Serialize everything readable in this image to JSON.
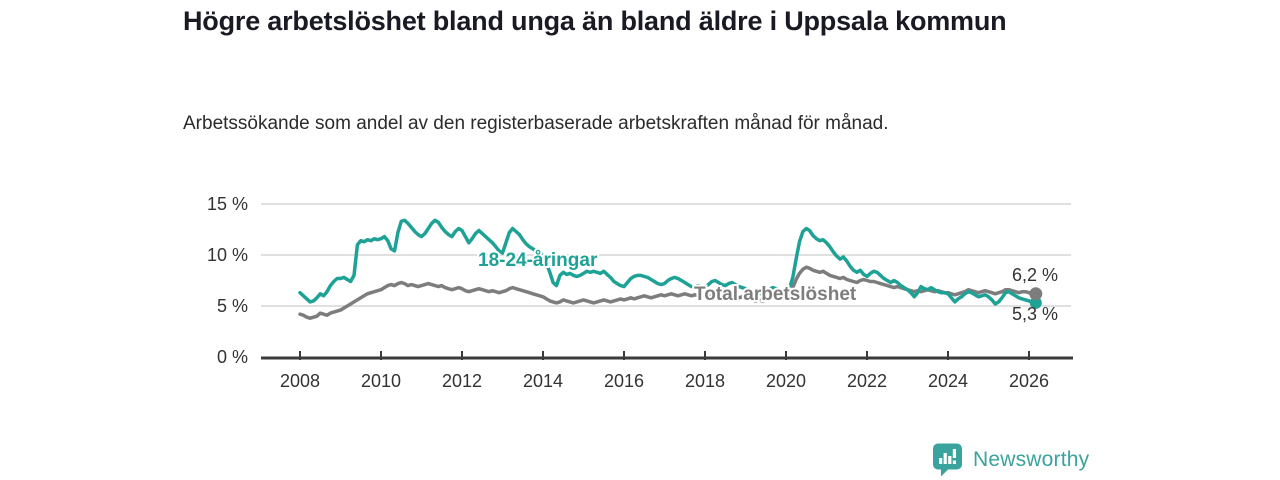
{
  "title": "Högre arbetslöshet bland unga än bland äldre i Uppsala kommun",
  "subtitle": "Arbetssökande som andel av den registerbaserade arbetskraften månad för månad.",
  "branding": {
    "wordmark": "Newsworthy"
  },
  "colors": {
    "youth": "#1fa296",
    "total": "#7d7d7d",
    "grid": "#d6d6d6",
    "axis": "#3b3b3b",
    "logo": "#3aa39d"
  },
  "chart_data": {
    "type": "line",
    "title": "Högre arbetslöshet bland unga än bland äldre i Uppsala kommun",
    "subtitle": "Arbetssökande som andel av den registerbaserade arbetskraften månad för månad.",
    "unit": "percent of registered labour force",
    "x_start": "2008-01",
    "points_per_year": 12,
    "xlim": [
      2008,
      2027.1
    ],
    "ylim": [
      0,
      15
    ],
    "grid": "horizontal",
    "y_tick_labels": [
      "15 %",
      "10 %",
      "5 %",
      "0 %"
    ],
    "x_tick_labels": [
      "2008",
      "2010",
      "2012",
      "2014",
      "2016",
      "2018",
      "2020",
      "2022",
      "2024",
      "2026"
    ],
    "end_labels": {
      "total": "6,2 %",
      "youth": "5,3 %"
    },
    "series": [
      {
        "name": "Total arbetslöshet",
        "color": "#7d7d7d",
        "last_value": 6.2,
        "values": [
          4.2,
          4.1,
          3.9,
          3.8,
          3.9,
          4.0,
          4.3,
          4.2,
          4.1,
          4.3,
          4.4,
          4.5,
          4.6,
          4.8,
          5.0,
          5.2,
          5.4,
          5.6,
          5.8,
          6.0,
          6.2,
          6.3,
          6.4,
          6.5,
          6.6,
          6.8,
          7.0,
          7.1,
          7.0,
          7.2,
          7.3,
          7.2,
          7.0,
          7.1,
          7.0,
          6.9,
          7.0,
          7.1,
          7.2,
          7.1,
          7.0,
          6.9,
          7.0,
          6.8,
          6.7,
          6.6,
          6.7,
          6.8,
          6.7,
          6.5,
          6.4,
          6.5,
          6.6,
          6.7,
          6.6,
          6.5,
          6.4,
          6.5,
          6.4,
          6.3,
          6.4,
          6.5,
          6.7,
          6.8,
          6.7,
          6.6,
          6.5,
          6.4,
          6.3,
          6.2,
          6.1,
          6.0,
          5.9,
          5.7,
          5.5,
          5.4,
          5.3,
          5.4,
          5.6,
          5.5,
          5.4,
          5.3,
          5.4,
          5.5,
          5.6,
          5.5,
          5.4,
          5.3,
          5.4,
          5.5,
          5.6,
          5.5,
          5.4,
          5.5,
          5.6,
          5.7,
          5.6,
          5.7,
          5.8,
          5.7,
          5.8,
          5.9,
          6.0,
          5.9,
          5.8,
          5.9,
          6.0,
          6.1,
          6.0,
          6.1,
          6.2,
          6.1,
          6.0,
          6.1,
          6.2,
          6.1,
          6.0,
          6.1,
          6.0,
          6.1,
          6.0,
          6.1,
          6.0,
          5.9,
          6.0,
          5.9,
          5.8,
          5.9,
          5.8,
          5.7,
          5.8,
          5.9,
          5.8,
          5.7,
          5.6,
          5.5,
          5.6,
          5.5,
          5.6,
          5.7,
          5.8,
          5.7,
          5.8,
          5.9,
          6.0,
          6.1,
          6.8,
          7.6,
          8.2,
          8.6,
          8.8,
          8.7,
          8.5,
          8.4,
          8.3,
          8.4,
          8.2,
          8.0,
          7.9,
          7.8,
          7.7,
          7.8,
          7.6,
          7.5,
          7.4,
          7.3,
          7.5,
          7.6,
          7.5,
          7.4,
          7.4,
          7.3,
          7.2,
          7.1,
          7.0,
          6.9,
          6.8,
          6.9,
          6.8,
          6.7,
          6.6,
          6.5,
          6.4,
          6.5,
          6.4,
          6.5,
          6.6,
          6.5,
          6.4,
          6.5,
          6.4,
          6.3,
          6.3,
          6.2,
          6.1,
          6.2,
          6.3,
          6.4,
          6.6,
          6.5,
          6.4,
          6.3,
          6.4,
          6.5,
          6.4,
          6.3,
          6.2,
          6.3,
          6.4,
          6.6,
          6.6,
          6.5,
          6.4,
          6.3,
          6.4,
          6.4,
          6.3,
          6.2,
          6.2
        ]
      },
      {
        "name": "18-24-åringar",
        "color": "#1fa296",
        "last_value": 5.3,
        "values": [
          6.3,
          6.0,
          5.7,
          5.4,
          5.5,
          5.8,
          6.2,
          6.0,
          6.4,
          7.0,
          7.4,
          7.7,
          7.7,
          7.8,
          7.6,
          7.4,
          8.0,
          11.0,
          11.4,
          11.3,
          11.5,
          11.4,
          11.6,
          11.5,
          11.6,
          11.8,
          11.4,
          10.6,
          10.4,
          12.2,
          13.3,
          13.4,
          13.1,
          12.7,
          12.3,
          12.0,
          11.8,
          12.1,
          12.6,
          13.1,
          13.4,
          13.2,
          12.7,
          12.3,
          12.0,
          11.8,
          12.3,
          12.6,
          12.4,
          11.8,
          11.2,
          11.6,
          12.1,
          12.4,
          12.1,
          11.8,
          11.5,
          11.2,
          10.8,
          10.4,
          10.2,
          11.2,
          12.2,
          12.6,
          12.3,
          12.0,
          11.5,
          11.1,
          10.8,
          10.6,
          10.4,
          10.2,
          10.0,
          9.2,
          8.3,
          7.3,
          7.0,
          8.0,
          8.3,
          8.1,
          8.2,
          8.0,
          7.9,
          8.0,
          8.2,
          8.4,
          8.3,
          8.4,
          8.3,
          8.2,
          8.4,
          8.1,
          7.8,
          7.4,
          7.2,
          7.0,
          6.9,
          7.3,
          7.7,
          7.9,
          8.0,
          8.0,
          7.9,
          7.8,
          7.6,
          7.4,
          7.2,
          7.1,
          7.2,
          7.5,
          7.7,
          7.8,
          7.7,
          7.5,
          7.3,
          7.1,
          6.9,
          6.9,
          7.0,
          6.9,
          6.9,
          7.1,
          7.4,
          7.5,
          7.3,
          7.1,
          7.0,
          7.2,
          7.3,
          7.1,
          6.9,
          6.8,
          6.7,
          6.5,
          6.4,
          6.3,
          6.2,
          6.2,
          6.4,
          6.6,
          6.8,
          6.7,
          6.6,
          6.5,
          6.5,
          6.7,
          7.8,
          9.6,
          11.3,
          12.3,
          12.6,
          12.4,
          11.9,
          11.6,
          11.4,
          11.5,
          11.2,
          10.8,
          10.3,
          9.9,
          9.6,
          9.8,
          9.4,
          8.9,
          8.5,
          8.3,
          8.5,
          8.1,
          7.9,
          8.2,
          8.4,
          8.3,
          8.0,
          7.7,
          7.5,
          7.3,
          7.5,
          7.3,
          7.0,
          6.8,
          6.6,
          6.3,
          5.9,
          6.3,
          6.9,
          6.7,
          6.6,
          6.8,
          6.6,
          6.4,
          6.3,
          6.3,
          6.2,
          5.8,
          5.4,
          5.7,
          5.9,
          6.2,
          6.4,
          6.3,
          6.1,
          5.9,
          6.0,
          6.1,
          5.9,
          5.6,
          5.2,
          5.4,
          5.8,
          6.3,
          6.4,
          6.2,
          6.0,
          5.8,
          5.7,
          5.6,
          5.5,
          5.4,
          5.3
        ]
      }
    ]
  }
}
